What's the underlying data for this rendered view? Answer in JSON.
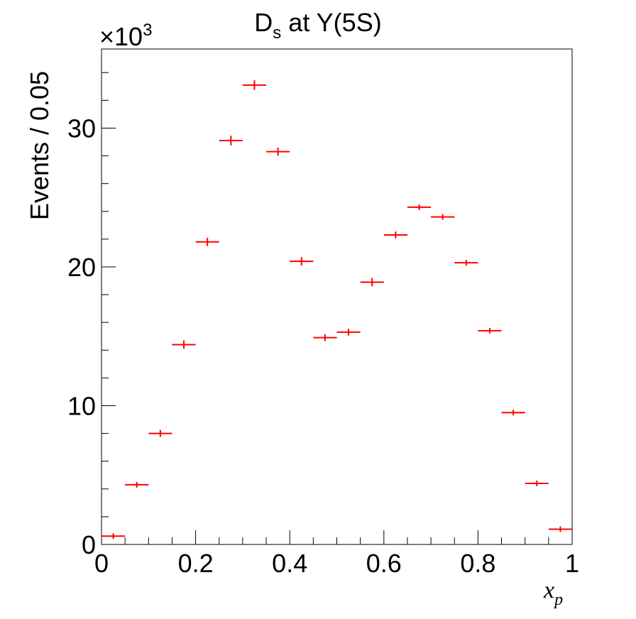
{
  "chart_data": {
    "type": "scatter",
    "title_main": "D",
    "title_sub": "s",
    "title_rest": " at Y(5S)",
    "xlabel_main": "x",
    "xlabel_sub": "p",
    "ylabel": "Events / 0.05",
    "y_multiplier_prefix": "×10",
    "y_multiplier_exp": "3",
    "xlim": [
      0,
      1
    ],
    "ylim": [
      0,
      35.7
    ],
    "x_ticks": [
      0,
      0.2,
      0.4,
      0.6,
      0.8,
      1
    ],
    "x_tick_labels": [
      "0",
      "0.2",
      "0.4",
      "0.6",
      "0.8",
      "1"
    ],
    "y_ticks": [
      0,
      10,
      20,
      30
    ],
    "y_tick_labels": [
      "0",
      "10",
      "20",
      "30"
    ],
    "bin_width": 0.05,
    "series": [
      {
        "color": "#ff0000",
        "x": [
          0.025,
          0.075,
          0.125,
          0.175,
          0.225,
          0.275,
          0.325,
          0.375,
          0.425,
          0.475,
          0.525,
          0.575,
          0.625,
          0.675,
          0.725,
          0.775,
          0.825,
          0.875,
          0.925,
          0.975
        ],
        "y": [
          0.6,
          4.3,
          8.0,
          14.4,
          21.8,
          29.1,
          33.1,
          28.3,
          20.4,
          14.9,
          15.3,
          18.9,
          22.3,
          24.3,
          23.6,
          20.3,
          15.4,
          9.5,
          4.4,
          1.1
        ],
        "yerr": [
          0.05,
          0.15,
          0.25,
          0.3,
          0.3,
          0.35,
          0.35,
          0.3,
          0.3,
          0.25,
          0.25,
          0.3,
          0.25,
          0.2,
          0.2,
          0.2,
          0.15,
          0.12,
          0.08,
          0.05
        ]
      }
    ],
    "grid": false,
    "legend": "none"
  }
}
